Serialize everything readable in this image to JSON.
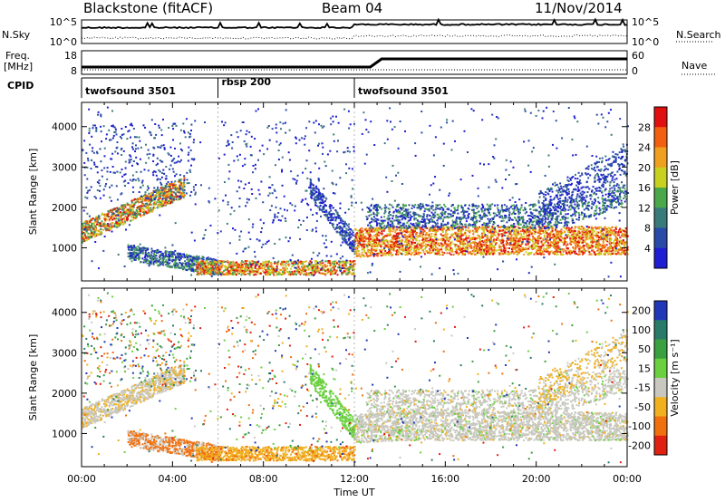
{
  "header": {
    "station": "Blackstone (fitACF)",
    "beam": "Beam 04",
    "date": "11/Nov/2014"
  },
  "left_labels": {
    "nsky": "N.Sky",
    "freq": "Freq.",
    "freq_unit": "[MHz]",
    "cpid": "CPID"
  },
  "right_labels": {
    "nsearch": "N.Search",
    "nave": "Nave"
  },
  "noise_panel": {
    "left_ticks": [
      "10^5",
      "10^0"
    ],
    "right_ticks": [
      "10^5",
      "10^0"
    ]
  },
  "freq_panel": {
    "left_ticks": [
      "18",
      "8"
    ],
    "right_ticks": [
      "60",
      "0"
    ]
  },
  "cpid_segments": [
    {
      "label": "twofsound 3501",
      "start": 0,
      "end": 6
    },
    {
      "label": "rbsp 200",
      "start": 6,
      "end": 12
    },
    {
      "label": "twofsound 3501",
      "start": 12,
      "end": 24
    }
  ],
  "chart_data": [
    {
      "type": "heatmap",
      "title": "",
      "xlabel": "Time UT",
      "ylabel": "Slant Range [km]",
      "x_ticks": [
        "00:00",
        "04:00",
        "08:00",
        "12:00",
        "16:00",
        "20:00",
        "00:00"
      ],
      "y_ticks": [
        "1000",
        "2000",
        "3000",
        "4000"
      ],
      "xlim": [
        0,
        24
      ],
      "ylim": [
        180,
        4600
      ],
      "colorbar_label": "Power [dB]",
      "colorbar_ticks": [
        "4",
        "8",
        "12",
        "16",
        "20",
        "24",
        "28"
      ],
      "colorbar_range": [
        0,
        32
      ],
      "colors": [
        "#1e1ed2",
        "#2a4aa8",
        "#3a7a7a",
        "#4aa84a",
        "#c8d020",
        "#f0a020",
        "#f06010",
        "#e01010"
      ]
    },
    {
      "type": "heatmap",
      "title": "",
      "xlabel": "Time UT",
      "ylabel": "Slant Range [km]",
      "x_ticks": [
        "00:00",
        "04:00",
        "08:00",
        "12:00",
        "16:00",
        "20:00",
        "00:00"
      ],
      "y_ticks": [
        "1000",
        "2000",
        "3000",
        "4000"
      ],
      "xlim": [
        0,
        24
      ],
      "ylim": [
        180,
        4600
      ],
      "colorbar_label": "Velocity [m s⁻¹]",
      "colorbar_ticks": [
        "200",
        "100",
        "50",
        "15",
        "-15",
        "-50",
        "-100",
        "-200"
      ],
      "colors": [
        "#2038b8",
        "#2a7a6a",
        "#3aa040",
        "#6ad040",
        "#c8c8c0",
        "#f0b020",
        "#f07010",
        "#e02010"
      ]
    }
  ]
}
